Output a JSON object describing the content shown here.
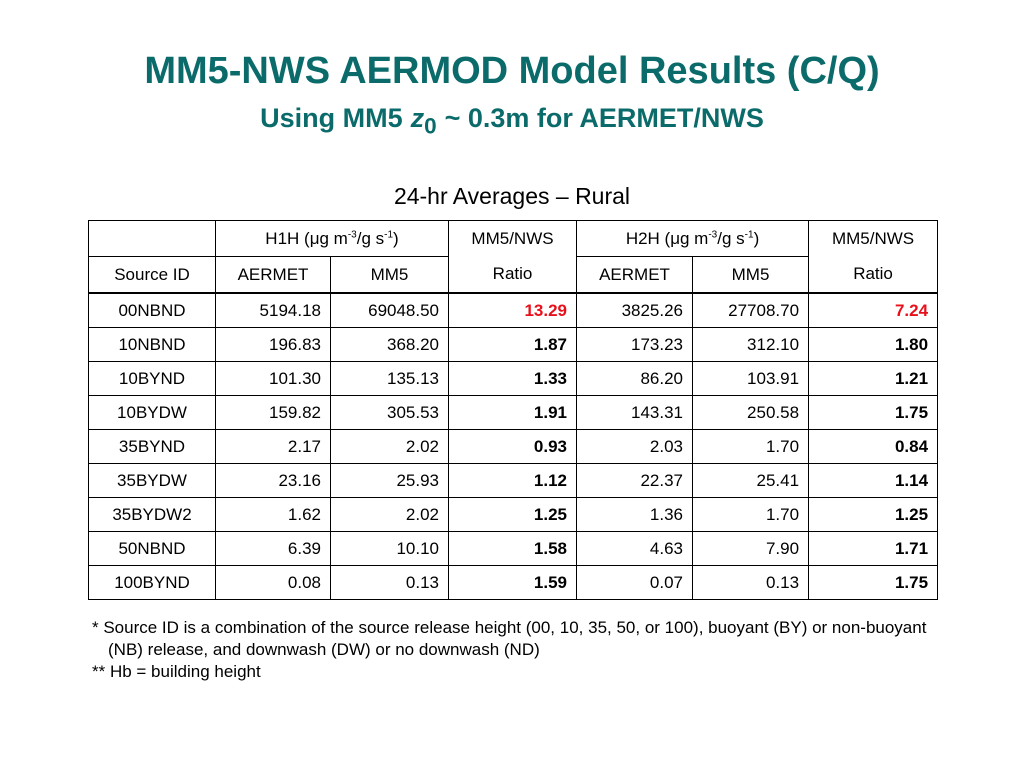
{
  "header": {
    "title": "MM5-NWS AERMOD Model Results (C/Q)",
    "subtitle": {
      "before": "Using MM5",
      "var": "z",
      "sub": "0",
      "after": "~ 0.3m for AERMET/NWS"
    }
  },
  "caption": "24-hr Averages – Rural",
  "table": {
    "group_headers": [
      {
        "parts": [
          "H1H (μg m",
          "-3",
          "/g s",
          "-1",
          ")"
        ]
      },
      "MM5/NWS",
      {
        "parts": [
          "H2H (μg m",
          "-3",
          "/g s",
          "-1",
          ")"
        ]
      },
      "MM5/NWS"
    ],
    "sub_headers": [
      "Source ID",
      "AERMET",
      "MM5",
      "Ratio",
      "AERMET",
      "MM5",
      "Ratio"
    ],
    "rows": [
      [
        "00NBND",
        "5194.18",
        "69048.50",
        "13.29",
        "3825.26",
        "27708.70",
        "7.24"
      ],
      [
        "10NBND",
        "196.83",
        "368.20",
        "1.87",
        "173.23",
        "312.10",
        "1.80"
      ],
      [
        "10BYND",
        "101.30",
        "135.13",
        "1.33",
        "86.20",
        "103.91",
        "1.21"
      ],
      [
        "10BYDW",
        "159.82",
        "305.53",
        "1.91",
        "143.31",
        "250.58",
        "1.75"
      ],
      [
        "35BYND",
        "2.17",
        "2.02",
        "0.93",
        "2.03",
        "1.70",
        "0.84"
      ],
      [
        "35BYDW",
        "23.16",
        "25.93",
        "1.12",
        "22.37",
        "25.41",
        "1.14"
      ],
      [
        "35BYDW2",
        "1.62",
        "2.02",
        "1.25",
        "1.36",
        "1.70",
        "1.25"
      ],
      [
        "50NBND",
        "6.39",
        "10.10",
        "1.58",
        "4.63",
        "7.90",
        "1.71"
      ],
      [
        "100BYND",
        "0.08",
        "0.13",
        "1.59",
        "0.07",
        "0.13",
        "1.75"
      ]
    ]
  },
  "footnotes": [
    "* Source ID is a combination of the source release height (00, 10, 35, 50, or 100), buoyant (BY) or non-buoyant (NB) release, and downwash (DW) or no downwash (ND)",
    "** Hb = building height"
  ]
}
